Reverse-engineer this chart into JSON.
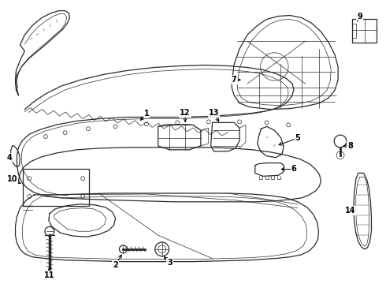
{
  "bg_color": "#ffffff",
  "line_color": "#2a2a2a",
  "label_color": "#000000",
  "lw_main": 0.9,
  "lw_thin": 0.5,
  "label_fs": 7.0
}
